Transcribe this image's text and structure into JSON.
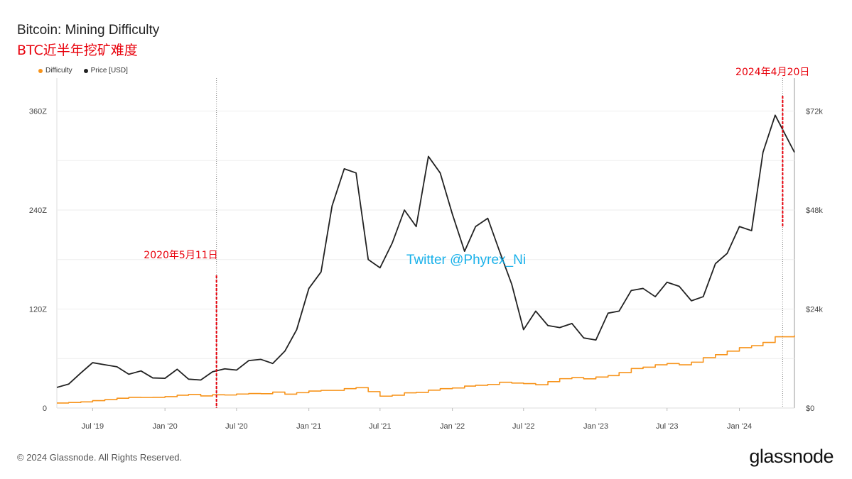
{
  "chart_data": {
    "type": "line",
    "title": "Bitcoin: Mining Difficulty",
    "subtitle": "BTC近半年挖矿难度",
    "x_ticks": [
      "Jul '19",
      "Jan '20",
      "Jul '20",
      "Jan '21",
      "Jul '21",
      "Jan '22",
      "Jul '22",
      "Jan '23",
      "Jul '23",
      "Jan '24"
    ],
    "x_tick_dates": [
      "2019-07-01",
      "2020-01-01",
      "2020-07-01",
      "2021-01-01",
      "2021-07-01",
      "2022-01-01",
      "2022-07-01",
      "2023-01-01",
      "2023-07-01",
      "2024-01-01"
    ],
    "x_range": [
      "2019-04-01",
      "2024-05-20"
    ],
    "y_left": {
      "ticks": [
        "0",
        "120Z",
        "240Z",
        "360Z"
      ],
      "tick_values": [
        0,
        120,
        240,
        360
      ],
      "range": [
        0,
        400
      ]
    },
    "y_right": {
      "ticks": [
        "$0",
        "$24k",
        "$48k",
        "$72k"
      ],
      "tick_values": [
        0,
        24000,
        48000,
        72000
      ],
      "range": [
        0,
        80000
      ]
    },
    "grid": true,
    "legend_position": "top-left",
    "series": [
      {
        "name": "Difficulty",
        "axis": "left",
        "color": "#f7931a",
        "points": [
          [
            "2019-04-01",
            6.1
          ],
          [
            "2019-05-01",
            6.7
          ],
          [
            "2019-06-01",
            7.5
          ],
          [
            "2019-07-01",
            9.0
          ],
          [
            "2019-08-01",
            10.2
          ],
          [
            "2019-09-01",
            11.9
          ],
          [
            "2019-10-01",
            13.0
          ],
          [
            "2019-11-01",
            12.8
          ],
          [
            "2019-12-01",
            13.0
          ],
          [
            "2020-01-01",
            13.8
          ],
          [
            "2020-02-01",
            15.5
          ],
          [
            "2020-03-01",
            16.5
          ],
          [
            "2020-04-01",
            14.7
          ],
          [
            "2020-05-01",
            16.1
          ],
          [
            "2020-06-01",
            15.8
          ],
          [
            "2020-07-01",
            17.0
          ],
          [
            "2020-08-01",
            17.6
          ],
          [
            "2020-09-01",
            17.4
          ],
          [
            "2020-10-01",
            19.3
          ],
          [
            "2020-11-01",
            16.8
          ],
          [
            "2020-12-01",
            18.6
          ],
          [
            "2021-01-01",
            20.6
          ],
          [
            "2021-02-01",
            21.4
          ],
          [
            "2021-03-01",
            21.4
          ],
          [
            "2021-04-01",
            23.5
          ],
          [
            "2021-05-01",
            24.7
          ],
          [
            "2021-06-01",
            19.9
          ],
          [
            "2021-07-01",
            14.4
          ],
          [
            "2021-08-01",
            15.5
          ],
          [
            "2021-09-01",
            18.4
          ],
          [
            "2021-10-01",
            19.0
          ],
          [
            "2021-11-01",
            21.7
          ],
          [
            "2021-12-01",
            23.5
          ],
          [
            "2022-01-01",
            24.3
          ],
          [
            "2022-02-01",
            26.6
          ],
          [
            "2022-03-01",
            27.6
          ],
          [
            "2022-04-01",
            28.6
          ],
          [
            "2022-05-01",
            31.2
          ],
          [
            "2022-06-01",
            30.3
          ],
          [
            "2022-07-01",
            29.6
          ],
          [
            "2022-08-01",
            28.2
          ],
          [
            "2022-09-01",
            32.0
          ],
          [
            "2022-10-01",
            35.6
          ],
          [
            "2022-11-01",
            36.8
          ],
          [
            "2022-12-01",
            35.4
          ],
          [
            "2023-01-01",
            37.6
          ],
          [
            "2023-02-01",
            39.3
          ],
          [
            "2023-03-01",
            43.0
          ],
          [
            "2023-04-01",
            47.9
          ],
          [
            "2023-05-01",
            49.5
          ],
          [
            "2023-06-01",
            52.4
          ],
          [
            "2023-07-01",
            53.9
          ],
          [
            "2023-08-01",
            52.4
          ],
          [
            "2023-09-01",
            55.6
          ],
          [
            "2023-10-01",
            61.0
          ],
          [
            "2023-11-01",
            64.7
          ],
          [
            "2023-12-01",
            69.0
          ],
          [
            "2024-01-01",
            73.2
          ],
          [
            "2024-02-01",
            75.5
          ],
          [
            "2024-03-01",
            79.5
          ],
          [
            "2024-04-01",
            86.4
          ],
          [
            "2024-05-20",
            88.1
          ]
        ]
      },
      {
        "name": "Price [USD]",
        "axis": "right",
        "color": "#222222",
        "points": [
          [
            "2019-04-01",
            5000
          ],
          [
            "2019-05-01",
            5800
          ],
          [
            "2019-06-01",
            8500
          ],
          [
            "2019-07-01",
            11000
          ],
          [
            "2019-08-01",
            10500
          ],
          [
            "2019-09-01",
            10000
          ],
          [
            "2019-10-01",
            8200
          ],
          [
            "2019-11-01",
            9000
          ],
          [
            "2019-12-01",
            7300
          ],
          [
            "2020-01-01",
            7200
          ],
          [
            "2020-02-01",
            9400
          ],
          [
            "2020-03-01",
            7000
          ],
          [
            "2020-04-01",
            6800
          ],
          [
            "2020-05-01",
            8800
          ],
          [
            "2020-06-01",
            9500
          ],
          [
            "2020-07-01",
            9200
          ],
          [
            "2020-08-01",
            11500
          ],
          [
            "2020-09-01",
            11800
          ],
          [
            "2020-10-01",
            10800
          ],
          [
            "2020-11-01",
            13800
          ],
          [
            "2020-12-01",
            19000
          ],
          [
            "2021-01-01",
            29000
          ],
          [
            "2021-02-01",
            33000
          ],
          [
            "2021-03-01",
            49000
          ],
          [
            "2021-04-01",
            58000
          ],
          [
            "2021-05-01",
            57000
          ],
          [
            "2021-06-01",
            36000
          ],
          [
            "2021-07-01",
            34000
          ],
          [
            "2021-08-01",
            40000
          ],
          [
            "2021-09-01",
            48000
          ],
          [
            "2021-10-01",
            44000
          ],
          [
            "2021-11-01",
            61000
          ],
          [
            "2021-12-01",
            57000
          ],
          [
            "2022-01-01",
            47000
          ],
          [
            "2022-02-01",
            38000
          ],
          [
            "2022-03-01",
            44000
          ],
          [
            "2022-04-01",
            46000
          ],
          [
            "2022-05-01",
            38000
          ],
          [
            "2022-06-01",
            30000
          ],
          [
            "2022-07-01",
            19000
          ],
          [
            "2022-08-01",
            23500
          ],
          [
            "2022-09-01",
            20000
          ],
          [
            "2022-10-01",
            19500
          ],
          [
            "2022-11-01",
            20500
          ],
          [
            "2022-12-01",
            17000
          ],
          [
            "2023-01-01",
            16500
          ],
          [
            "2023-02-01",
            23000
          ],
          [
            "2023-03-01",
            23500
          ],
          [
            "2023-04-01",
            28500
          ],
          [
            "2023-05-01",
            29000
          ],
          [
            "2023-06-01",
            27000
          ],
          [
            "2023-07-01",
            30500
          ],
          [
            "2023-08-01",
            29500
          ],
          [
            "2023-09-01",
            26000
          ],
          [
            "2023-10-01",
            27000
          ],
          [
            "2023-11-01",
            35000
          ],
          [
            "2023-12-01",
            37500
          ],
          [
            "2024-01-01",
            44000
          ],
          [
            "2024-02-01",
            43000
          ],
          [
            "2024-03-01",
            62000
          ],
          [
            "2024-04-01",
            71000
          ],
          [
            "2024-05-20",
            62000
          ]
        ]
      }
    ],
    "annotations": [
      {
        "label": "2020年5月11日",
        "x": "2020-05-11"
      },
      {
        "label": "2024年4月20日",
        "x": "2024-04-20"
      }
    ],
    "watermark": "Twitter @Phyrex_Ni"
  },
  "footer": {
    "copyright": "© 2024 Glassnode. All Rights Reserved.",
    "brand": "glassnode"
  },
  "colors": {
    "difficulty": "#f7931a",
    "price": "#222222",
    "annotation": "#e8000b",
    "watermark": "#00a8e8"
  }
}
